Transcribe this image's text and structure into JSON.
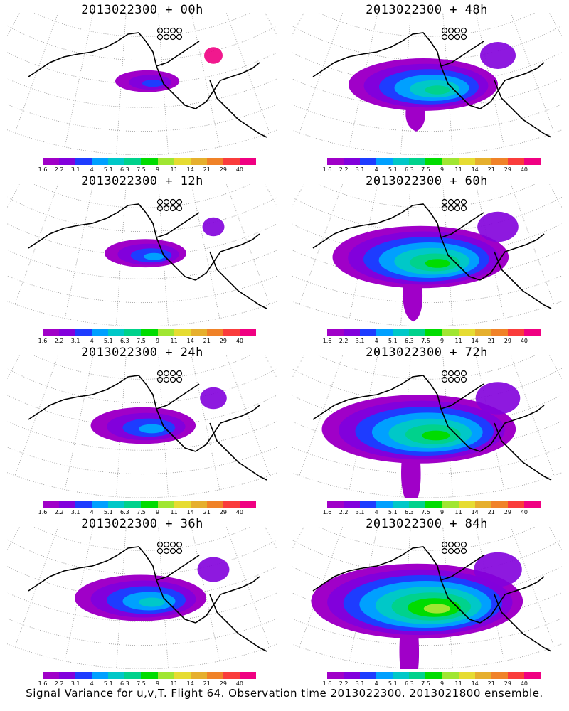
{
  "caption": "Signal Variance for u,v,T. Flight 64. Observation time 2013022300. 2013021800 ensemble.",
  "colorbar": {
    "colors": [
      "#a000c8",
      "#8200dc",
      "#1e3cff",
      "#00a0ff",
      "#00c8c8",
      "#00d28c",
      "#00dc00",
      "#a0e632",
      "#e6dc32",
      "#e6af2d",
      "#f08228",
      "#fa3c3c",
      "#f00082"
    ],
    "labels": [
      "1.6",
      "2.2",
      "3.1",
      "4",
      "5.1",
      "6.3",
      "7.5",
      "9",
      "11",
      "14",
      "21",
      "29",
      "40"
    ]
  },
  "panels": [
    {
      "title": "2013022300 + 00h",
      "spread": 0.12,
      "intensity": 0.15
    },
    {
      "title": "2013022300 + 48h",
      "spread": 0.6,
      "intensity": 0.55
    },
    {
      "title": "2013022300 + 12h",
      "spread": 0.22,
      "intensity": 0.25
    },
    {
      "title": "2013022300 + 60h",
      "spread": 0.75,
      "intensity": 0.65
    },
    {
      "title": "2013022300 + 24h",
      "spread": 0.35,
      "intensity": 0.35
    },
    {
      "title": "2013022300 + 72h",
      "spread": 0.85,
      "intensity": 0.7
    },
    {
      "title": "2013022300 + 36h",
      "spread": 0.5,
      "intensity": 0.45
    },
    {
      "title": "2013022300 + 84h",
      "spread": 0.95,
      "intensity": 0.8
    }
  ]
}
